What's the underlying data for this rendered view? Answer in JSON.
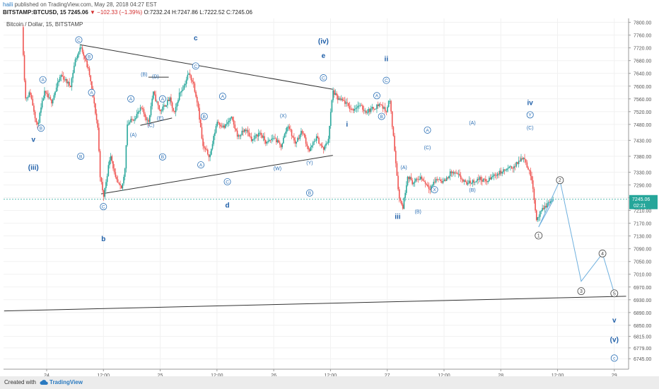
{
  "header": {
    "user": "haili",
    "published_text": "published on TradingView.com, May 28, 2018 04:27 EST",
    "symbol": "BITSTAMP:BTCUSD, 15",
    "last": "7245.06",
    "change": "−102.33 (−1.39%)",
    "ohlc": {
      "O": "7232.24",
      "H": "7247.86",
      "L": "7222.52",
      "C": "7245.06"
    }
  },
  "chart_data": {
    "type": "candlestick",
    "title": "Bitcoin / Dollar, 15, BITSTAMP",
    "ylim": [
      6745,
      7800
    ],
    "y_ticks": [
      "7800.00",
      "7760.00",
      "7720.00",
      "7680.00",
      "7640.00",
      "7600.00",
      "7560.00",
      "7520.00",
      "7480.00",
      "7430.00",
      "7380.00",
      "7330.00",
      "7290.00",
      "7250.00",
      "7210.00",
      "7170.00",
      "7130.00",
      "7090.00",
      "7050.00",
      "7010.00",
      "6970.00",
      "6930.00",
      "6890.00",
      "6850.00",
      "6815.00",
      "6779.00",
      "6745.00"
    ],
    "x_ticks": [
      {
        "label": "24",
        "t": 0
      },
      {
        "label": "12:00",
        "t": 12
      },
      {
        "label": "25",
        "t": 24
      },
      {
        "label": "12:00",
        "t": 36
      },
      {
        "label": "26",
        "t": 48
      },
      {
        "label": "12:00",
        "t": 60
      },
      {
        "label": "27",
        "t": 72
      },
      {
        "label": "12:00",
        "t": 84
      },
      {
        "label": "28",
        "t": 96
      },
      {
        "label": "12:00",
        "t": 108
      },
      {
        "label": "29",
        "t": 120
      }
    ],
    "colors": {
      "up": "#26a69a",
      "down": "#ef5350",
      "wave_path": "#6fb0de",
      "trendline": "#333333",
      "label": "#1f5fa8"
    },
    "current_price": "7245.06",
    "countdown": "02:21",
    "price_path": [
      [
        -5.2,
        7785
      ],
      [
        -4.5,
        7560
      ],
      [
        -3.5,
        7580
      ],
      [
        -2.5,
        7510
      ],
      [
        -2,
        7470
      ],
      [
        -0.5,
        7580
      ],
      [
        1,
        7550
      ],
      [
        3,
        7635
      ],
      [
        5,
        7600
      ],
      [
        6,
        7680
      ],
      [
        7.3,
        7725
      ],
      [
        9,
        7640
      ],
      [
        10.8,
        7470
      ],
      [
        11.3,
        7320
      ],
      [
        12,
        7250
      ],
      [
        13.5,
        7390
      ],
      [
        14.5,
        7310
      ],
      [
        15.8,
        7275
      ],
      [
        16.5,
        7330
      ],
      [
        17,
        7480
      ],
      [
        18.5,
        7500
      ],
      [
        20,
        7530
      ],
      [
        21.5,
        7485
      ],
      [
        22.5,
        7580
      ],
      [
        24,
        7520
      ],
      [
        26,
        7560
      ],
      [
        27,
        7510
      ],
      [
        28,
        7575
      ],
      [
        29,
        7600
      ],
      [
        30,
        7640
      ],
      [
        31,
        7610
      ],
      [
        32,
        7540
      ],
      [
        33,
        7410
      ],
      [
        34.5,
        7380
      ],
      [
        36,
        7490
      ],
      [
        37.5,
        7470
      ],
      [
        39,
        7500
      ],
      [
        40.5,
        7440
      ],
      [
        42,
        7465
      ],
      [
        43.5,
        7430
      ],
      [
        45,
        7455
      ],
      [
        46.5,
        7420
      ],
      [
        48,
        7440
      ],
      [
        49.5,
        7410
      ],
      [
        51,
        7480
      ],
      [
        52.5,
        7420
      ],
      [
        54,
        7460
      ],
      [
        55.5,
        7395
      ],
      [
        57,
        7440
      ],
      [
        58.5,
        7400
      ],
      [
        59.5,
        7430
      ],
      [
        60.5,
        7585
      ],
      [
        61.5,
        7560
      ],
      [
        63,
        7550
      ],
      [
        64.5,
        7525
      ],
      [
        66,
        7540
      ],
      [
        67.5,
        7520
      ],
      [
        69,
        7530
      ],
      [
        70.5,
        7545
      ],
      [
        71.7,
        7520
      ],
      [
        72.5,
        7560
      ],
      [
        73.5,
        7410
      ],
      [
        74.5,
        7250
      ],
      [
        75.3,
        7220
      ],
      [
        76.3,
        7320
      ],
      [
        77.5,
        7295
      ],
      [
        79,
        7315
      ],
      [
        81,
        7280
      ],
      [
        82.5,
        7310
      ],
      [
        84,
        7300
      ],
      [
        85.5,
        7330
      ],
      [
        87,
        7320
      ],
      [
        88.5,
        7295
      ],
      [
        90,
        7300
      ],
      [
        91.5,
        7310
      ],
      [
        93,
        7300
      ],
      [
        94.5,
        7320
      ],
      [
        96,
        7330
      ],
      [
        97.5,
        7340
      ],
      [
        99,
        7350
      ],
      [
        100.8,
        7380
      ],
      [
        101.7,
        7345
      ],
      [
        102.7,
        7300
      ],
      [
        103.5,
        7180
      ],
      [
        104.3,
        7200
      ],
      [
        105.2,
        7220
      ],
      [
        106.2,
        7235
      ],
      [
        107.2,
        7245
      ]
    ],
    "projection": [
      {
        "label": "1",
        "t": 104.0,
        "price": 7158,
        "y_label_offset": 12
      },
      {
        "label": "2",
        "t": 108.5,
        "price": 7305
      },
      {
        "label": "3",
        "t": 113.0,
        "price": 6988,
        "y_label_offset": 14
      },
      {
        "label": "4",
        "t": 117.5,
        "price": 7075
      },
      {
        "label": "5",
        "t": 120.0,
        "price": 6950
      }
    ],
    "trendlines": [
      {
        "name": "triangle-upper",
        "t1": 7.0,
        "p1": 7730,
        "t2": 60.5,
        "p2": 7590
      },
      {
        "name": "triangle-lower",
        "t1": 11.5,
        "p1": 7262,
        "t2": 60.5,
        "p2": 7383
      },
      {
        "name": "triangle-b-e-upper",
        "t1": 21.5,
        "p1": 7628,
        "t2": 25.8,
        "p2": 7628
      },
      {
        "name": "triangle-b-e-lower",
        "t1": 19.8,
        "p1": 7477,
        "t2": 26.5,
        "p2": 7500
      },
      {
        "name": "long-support",
        "t1": -9,
        "p1": 6895,
        "t2": 122.5,
        "p2": 6941
      }
    ],
    "wave_labels": [
      {
        "text": "v",
        "t": -2.8,
        "price": 7432,
        "style": "plain"
      },
      {
        "text": "(iii)",
        "t": -2.8,
        "price": 7344,
        "style": "plain"
      },
      {
        "text": "B",
        "t": -1.2,
        "price": 7468,
        "style": "circle"
      },
      {
        "text": "A",
        "t": -0.8,
        "price": 7620,
        "style": "circle"
      },
      {
        "text": "C",
        "t": 6.8,
        "price": 7745,
        "style": "circle"
      },
      {
        "text": "B",
        "t": 9.0,
        "price": 7692,
        "style": "circle"
      },
      {
        "text": "A",
        "t": 9.5,
        "price": 7580,
        "style": "circle"
      },
      {
        "text": "C",
        "t": 12.0,
        "price": 7222,
        "style": "circle"
      },
      {
        "text": "b",
        "t": 12.0,
        "price": 7120,
        "style": "plain"
      },
      {
        "text": "B",
        "t": 7.2,
        "price": 7380,
        "style": "circle"
      },
      {
        "text": "A",
        "t": 17.8,
        "price": 7560,
        "style": "circle"
      },
      {
        "text": "(A)",
        "t": 18.3,
        "price": 7447,
        "style": "small"
      },
      {
        "text": "(B)",
        "t": 20.6,
        "price": 7637,
        "style": "small"
      },
      {
        "text": "(C)",
        "t": 22.0,
        "price": 7478,
        "style": "small"
      },
      {
        "text": "(D)",
        "t": 23.0,
        "price": 7630,
        "style": "small"
      },
      {
        "text": "(E)",
        "t": 24.0,
        "price": 7500,
        "style": "small"
      },
      {
        "text": "A",
        "t": 24.5,
        "price": 7560,
        "style": "circle"
      },
      {
        "text": "B",
        "t": 24.5,
        "price": 7378,
        "style": "circle"
      },
      {
        "text": "c",
        "t": 31.5,
        "price": 7750,
        "style": "plain"
      },
      {
        "text": "C",
        "t": 31.5,
        "price": 7663,
        "style": "circle"
      },
      {
        "text": "B",
        "t": 33.3,
        "price": 7505,
        "style": "circle"
      },
      {
        "text": "A",
        "t": 32.6,
        "price": 7353,
        "style": "circle"
      },
      {
        "text": "A",
        "t": 37.2,
        "price": 7568,
        "style": "circle"
      },
      {
        "text": "C",
        "t": 38.2,
        "price": 7300,
        "style": "circle"
      },
      {
        "text": "d",
        "t": 38.2,
        "price": 7226,
        "style": "plain"
      },
      {
        "text": "(X)",
        "t": 50.0,
        "price": 7507,
        "style": "small"
      },
      {
        "text": "(W)",
        "t": 48.8,
        "price": 7342,
        "style": "small"
      },
      {
        "text": "(Y)",
        "t": 55.6,
        "price": 7360,
        "style": "small"
      },
      {
        "text": "B",
        "t": 55.6,
        "price": 7265,
        "style": "circle"
      },
      {
        "text": "(iv)",
        "t": 58.5,
        "price": 7740,
        "style": "plain"
      },
      {
        "text": "e",
        "t": 58.5,
        "price": 7695,
        "style": "plain"
      },
      {
        "text": "C",
        "t": 58.5,
        "price": 7626,
        "style": "circle"
      },
      {
        "text": "i",
        "t": 63.5,
        "price": 7480,
        "style": "plain"
      },
      {
        "text": "A",
        "t": 69.8,
        "price": 7570,
        "style": "circle"
      },
      {
        "text": "B",
        "t": 70.8,
        "price": 7505,
        "style": "circle"
      },
      {
        "text": "ii",
        "t": 71.8,
        "price": 7685,
        "style": "plain"
      },
      {
        "text": "C",
        "t": 71.8,
        "price": 7618,
        "style": "circle"
      },
      {
        "text": "iii",
        "t": 74.2,
        "price": 7190,
        "style": "plain"
      },
      {
        "text": "(A)",
        "t": 75.5,
        "price": 7345,
        "style": "small"
      },
      {
        "text": "(B)",
        "t": 78.5,
        "price": 7207,
        "style": "small"
      },
      {
        "text": "A",
        "t": 80.5,
        "price": 7462,
        "style": "circle"
      },
      {
        "text": "(C)",
        "t": 80.5,
        "price": 7408,
        "style": "small"
      },
      {
        "text": "X",
        "t": 82.0,
        "price": 7275,
        "style": "circle"
      },
      {
        "text": "(A)",
        "t": 90.0,
        "price": 7485,
        "style": "small"
      },
      {
        "text": "(B)",
        "t": 90.0,
        "price": 7275,
        "style": "small"
      },
      {
        "text": "iv",
        "t": 102.2,
        "price": 7547,
        "style": "plain"
      },
      {
        "text": "Y",
        "t": 102.2,
        "price": 7510,
        "style": "circle"
      },
      {
        "text": "(C)",
        "t": 102.2,
        "price": 7470,
        "style": "small"
      },
      {
        "text": "v",
        "t": 120.0,
        "price": 6865,
        "style": "plain"
      },
      {
        "text": "(v)",
        "t": 120.0,
        "price": 6804,
        "style": "plain"
      },
      {
        "text": "c",
        "t": 120.0,
        "price": 6747,
        "style": "circle"
      }
    ]
  },
  "footer": {
    "created_with": "Created with",
    "brand": "TradingView"
  }
}
